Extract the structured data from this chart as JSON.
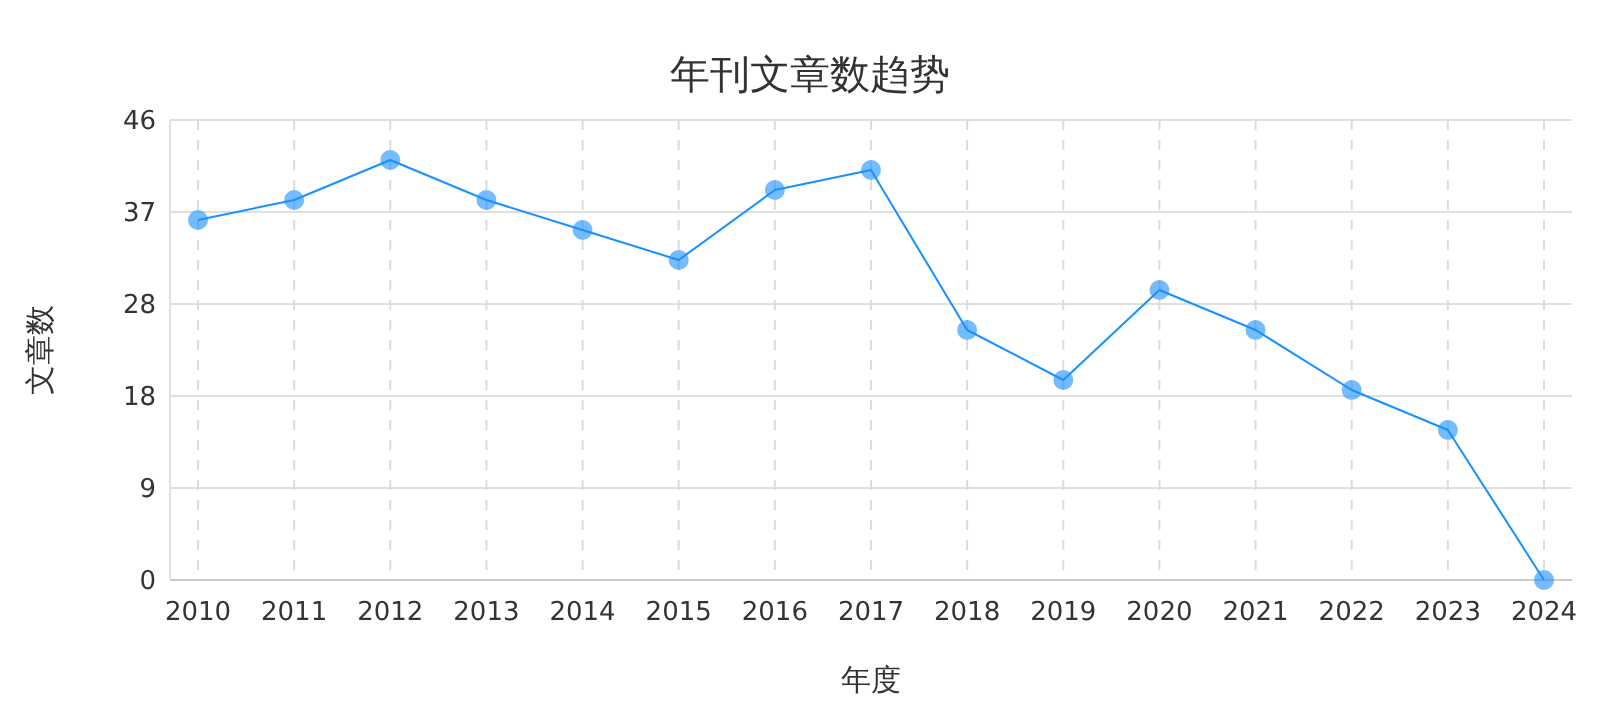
{
  "chart_data": {
    "type": "line",
    "title": "年刊文章数趋势",
    "xlabel": "年度",
    "ylabel": "文章数",
    "categories": [
      "2010",
      "2011",
      "2012",
      "2013",
      "2014",
      "2015",
      "2016",
      "2017",
      "2018",
      "2019",
      "2020",
      "2021",
      "2022",
      "2023",
      "2024"
    ],
    "series": [
      {
        "color": "#1890ff",
        "values": [
          36,
          38,
          42,
          38,
          35,
          32,
          39,
          41,
          25,
          20,
          29,
          25,
          19,
          15,
          0
        ]
      }
    ],
    "ylim": [
      0,
      46
    ],
    "yticks": [
      0,
      {
        "value": 9.2,
        "label": "9"
      },
      {
        "value": 18.4,
        "label": "18"
      },
      {
        "value": 27.6,
        "label": "28"
      },
      {
        "value": 36.8,
        "label": "37"
      },
      46
    ],
    "grid": true,
    "marker": "circle",
    "line_style": "solid"
  }
}
